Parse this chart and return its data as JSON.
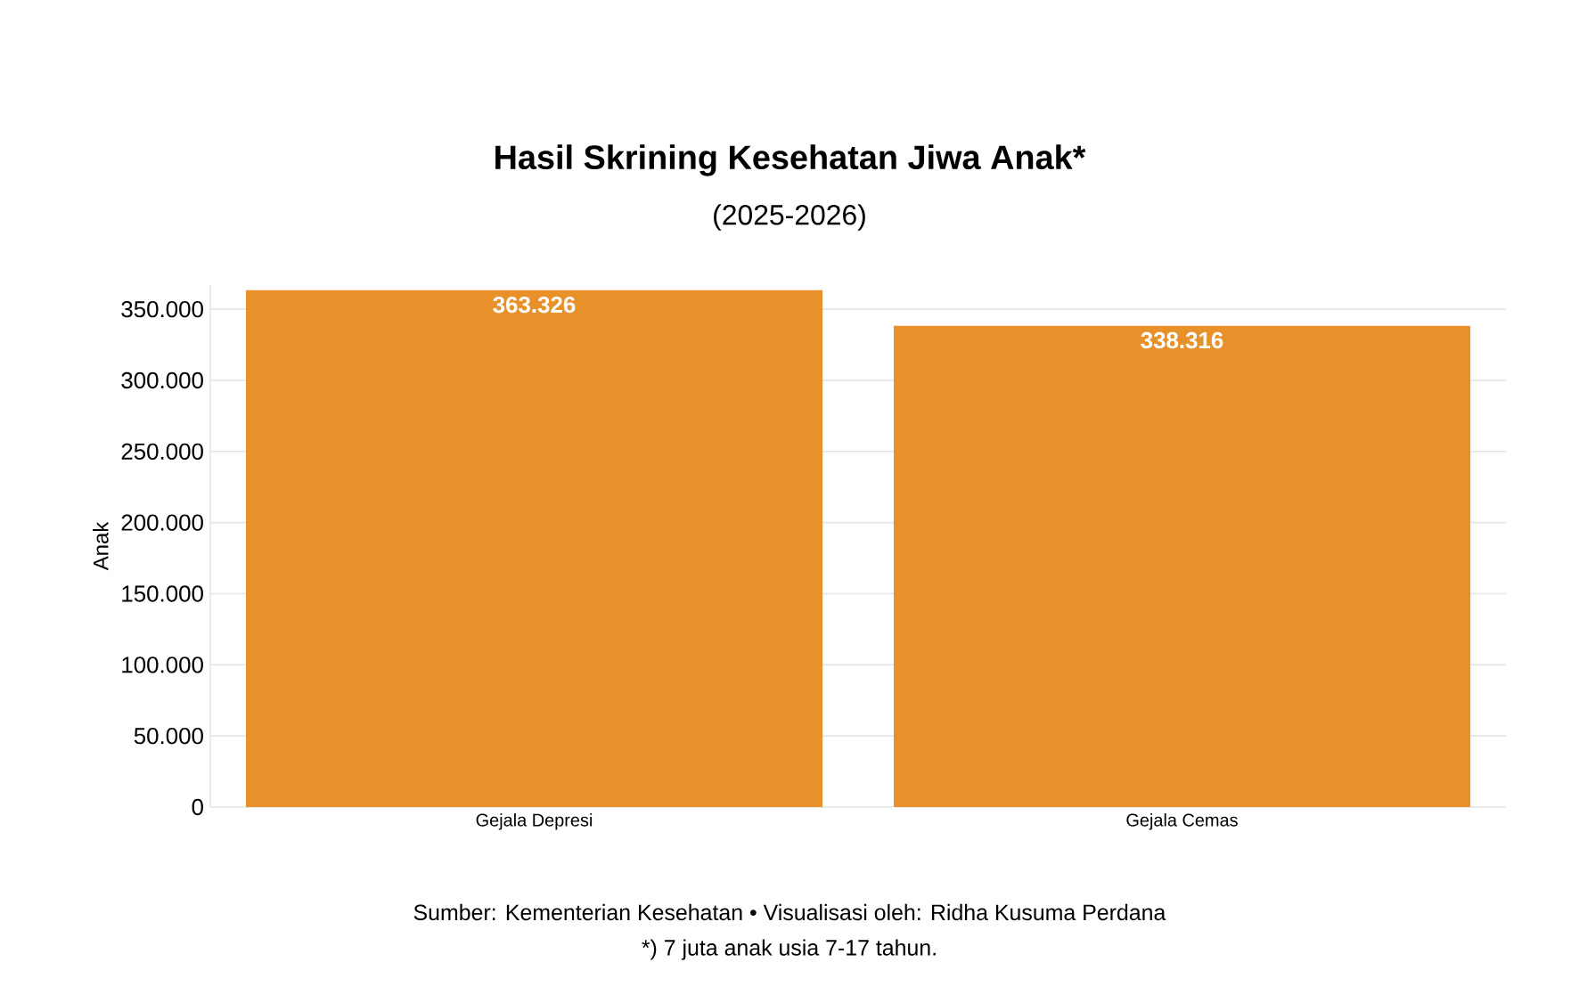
{
  "chart_data": {
    "type": "bar",
    "title": "Hasil Skrining Kesehatan Jiwa Anak*",
    "subtitle": "(2025-2026)",
    "ylabel": "Anak",
    "categories": [
      "Gejala Depresi",
      "Gejala Cemas"
    ],
    "values": [
      363326,
      338316
    ],
    "value_labels": [
      "363.326",
      "338.316"
    ],
    "color": "#e8912a",
    "ylim": [
      0,
      367000
    ],
    "yticks": [
      0,
      {
        "value": 50000,
        "label": "50.000"
      },
      {
        "value": 100000,
        "label": "100.000"
      },
      {
        "value": 150000,
        "label": "150.000"
      },
      {
        "value": 200000,
        "label": "200.000"
      },
      {
        "value": 250000,
        "label": "250.000"
      },
      {
        "value": 300000,
        "label": "300.000"
      },
      {
        "value": 350000,
        "label": "350.000"
      }
    ],
    "grid": "y",
    "annotations": [
      "Sumber: Kementerian Kesehatan • Visualisasi oleh: Ridha Kusuma Perdana",
      "*) 7 juta anak usia 7-17 tahun."
    ]
  }
}
